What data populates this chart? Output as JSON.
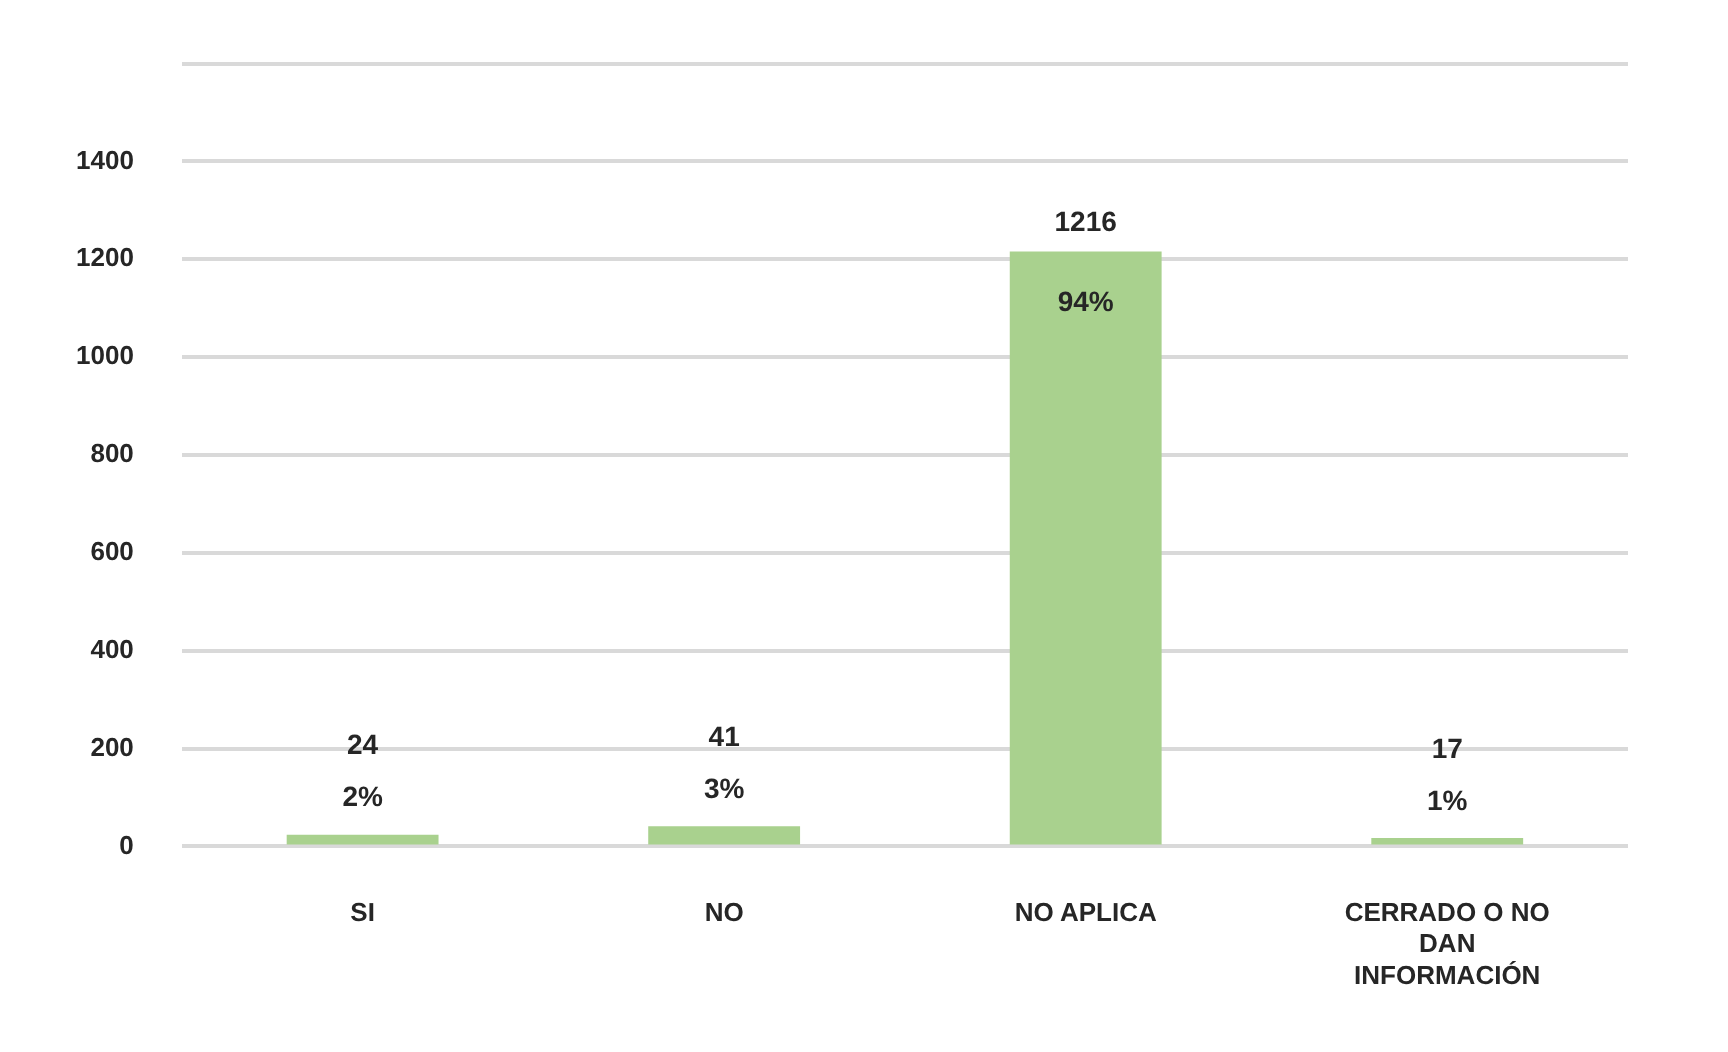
{
  "chart_data": {
    "type": "bar",
    "categories": [
      "SI",
      "NO",
      "NO APLICA",
      "CERRADO O NO DAN INFORMACIÓN"
    ],
    "values": [
      24,
      41,
      1216,
      17
    ],
    "color": "#a9d18e",
    "ylim": [
      0,
      1600
    ],
    "yticks": [
      0,
      200,
      400,
      600,
      800,
      1000,
      1200,
      1400,
      {
        "value": 1600,
        "label": null
      }
    ],
    "grid": "y",
    "data_labels": true,
    "annotations": [
      {
        "text": "2%",
        "x": "SI",
        "y": 24
      },
      {
        "text": "3%",
        "x": "NO",
        "y": 41
      },
      {
        "text": "94%",
        "x": "NO APLICA",
        "y": 1216
      },
      {
        "text": "1%",
        "x": "CERRADO O NO DAN INFORMACIÓN",
        "y": 17
      }
    ]
  }
}
